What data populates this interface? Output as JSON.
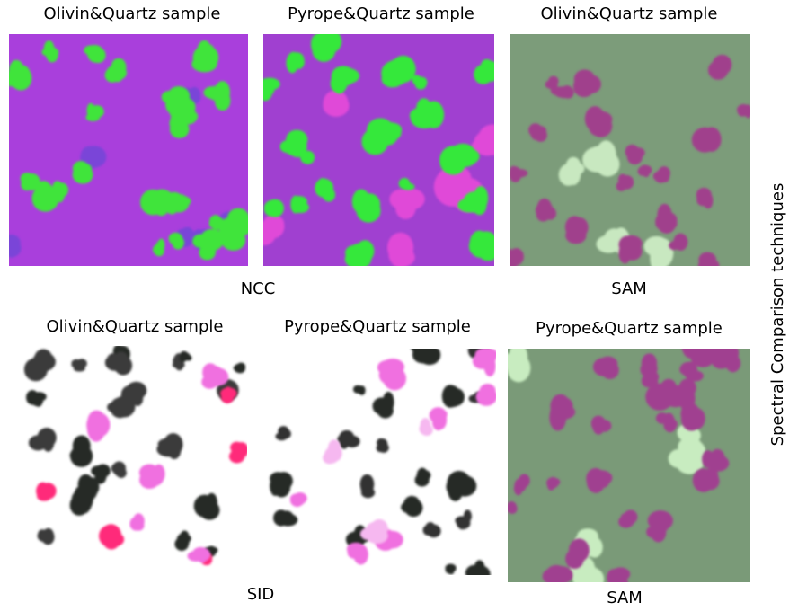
{
  "panels": [
    {
      "caption": "Olivin&Quartz sample"
    },
    {
      "caption": "Pyrope&Quartz sample"
    },
    {
      "caption": "Olivin&Quartz sample"
    },
    {
      "caption": "Olivin&Quartz sample"
    },
    {
      "caption": "Pyrope&Quartz sample"
    },
    {
      "caption": "Pyrope&Quartz sample"
    }
  ],
  "group_labels": [
    "NCC",
    "SAM",
    "SID",
    "SAM"
  ],
  "side_label": "Spectral Comparison techniques"
}
